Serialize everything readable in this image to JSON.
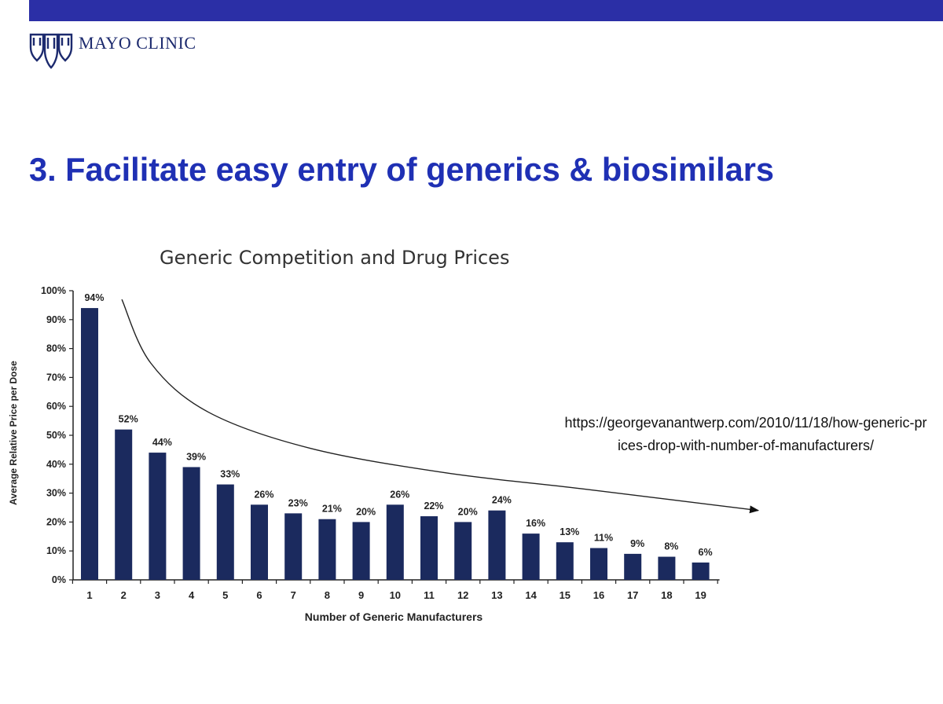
{
  "header": {
    "logo_text": "MAYO CLINIC",
    "bar_color": "#2b2fa6"
  },
  "slide": {
    "title": "3. Facilitate easy entry of generics & biosimilars",
    "title_color": "#1f30b4"
  },
  "source": {
    "url": "https://georgevanantwerp.com/2010/11/18/how-generic-prices-drop-with-number-of-manufacturers/"
  },
  "chart_data": {
    "type": "bar",
    "title": "Generic Competition and Drug Prices",
    "xlabel": "Number of Generic Manufacturers",
    "ylabel": "Average Relative Price per Dose",
    "categories": [
      "1",
      "2",
      "3",
      "4",
      "5",
      "6",
      "7",
      "8",
      "9",
      "10",
      "11",
      "12",
      "13",
      "14",
      "15",
      "16",
      "17",
      "18",
      "19"
    ],
    "values": [
      94,
      52,
      44,
      39,
      33,
      26,
      23,
      21,
      20,
      26,
      22,
      20,
      24,
      16,
      13,
      11,
      9,
      8,
      6
    ],
    "value_labels": [
      "94%",
      "52%",
      "44%",
      "39%",
      "33%",
      "26%",
      "23%",
      "21%",
      "20%",
      "26%",
      "22%",
      "20%",
      "24%",
      "16%",
      "13%",
      "11%",
      "9%",
      "8%",
      "6%"
    ],
    "ylim": [
      0,
      100
    ],
    "yticks": [
      0,
      10,
      20,
      30,
      40,
      50,
      60,
      70,
      80,
      90,
      100
    ],
    "ytick_labels": [
      "0%",
      "10%",
      "20%",
      "30%",
      "40%",
      "50%",
      "60%",
      "70%",
      "80%",
      "90%",
      "100%"
    ],
    "bar_color": "#1b2a5e",
    "trend_arrow": "decreasing curve from bar 2 to beyond bar 19",
    "grid": false
  }
}
